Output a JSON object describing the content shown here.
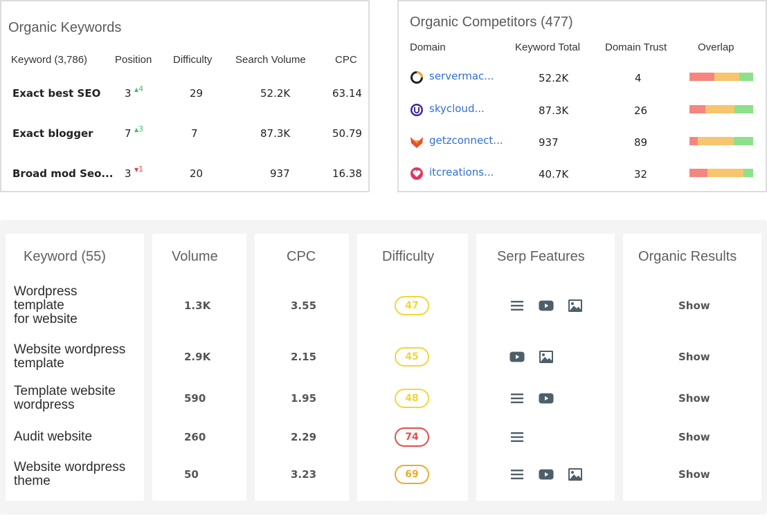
{
  "organic_keywords": {
    "title": "Organic Keywords",
    "headers": {
      "keyword": "Keyword (3,786)",
      "position": "Position",
      "difficulty": "Difficulty",
      "search_volume": "Search Volume",
      "cpc": "CPC"
    },
    "rows": [
      {
        "keyword": "Exact best SEO",
        "position": "3",
        "delta": "4",
        "trend": "up",
        "difficulty": "29",
        "volume": "52.2K",
        "cpc": "63.14"
      },
      {
        "keyword": "Exact blogger",
        "position": "7",
        "delta": "3",
        "trend": "up",
        "difficulty": "7",
        "volume": "87.3K",
        "cpc": "50.79"
      },
      {
        "keyword": "Broad mod Seo...",
        "position": "3",
        "delta": "1",
        "trend": "down",
        "difficulty": "20",
        "volume": "937",
        "cpc": "16.38"
      }
    ]
  },
  "organic_competitors": {
    "title": "Organic Competitors (477)",
    "headers": {
      "domain": "Domain",
      "keyword_total": "Keyword Total",
      "domain_trust": "Domain Trust",
      "overlap": "Overlap"
    },
    "rows": [
      {
        "domain": "servermac...",
        "icon": "ring-logo-icon",
        "keyword_total": "52.2K",
        "domain_trust": "4",
        "overlap": [
          0.39,
          0.39,
          0.22
        ]
      },
      {
        "domain": "skycloud...",
        "icon": "u-circle-logo-icon",
        "keyword_total": "87.3K",
        "domain_trust": "26",
        "overlap": [
          0.25,
          0.46,
          0.29
        ]
      },
      {
        "domain": "getzconnect...",
        "icon": "fox-logo-icon",
        "keyword_total": "937",
        "domain_trust": "89",
        "overlap": [
          0.13,
          0.57,
          0.3
        ]
      },
      {
        "domain": "itcreations...",
        "icon": "heart-logo-icon",
        "keyword_total": "40.7K",
        "domain_trust": "32",
        "overlap": [
          0.28,
          0.57,
          0.15
        ]
      }
    ]
  },
  "keyword_table": {
    "headers": {
      "keyword": "Keyword (55)",
      "volume": "Volume",
      "cpc": "CPC",
      "difficulty": "Difficulty",
      "serp": "Serp Features",
      "organic": "Organic Results"
    },
    "rows": [
      {
        "keyword": [
          "Wordpress",
          "template",
          "for website"
        ],
        "volume": "1.3K",
        "cpc": "3.55",
        "difficulty": "47",
        "difficulty_color": "#f2d63a",
        "serp": [
          "list-icon",
          "video-icon",
          "image-icon"
        ],
        "organic": "Show"
      },
      {
        "keyword": [
          "Website wordpress",
          "template"
        ],
        "volume": "2.9K",
        "cpc": "2.15",
        "difficulty": "45",
        "difficulty_color": "#f2d63a",
        "serp": [
          "video-icon",
          "image-icon"
        ],
        "organic": "Show"
      },
      {
        "keyword": [
          "Template website",
          "wordpress"
        ],
        "volume": "590",
        "cpc": "1.95",
        "difficulty": "48",
        "difficulty_color": "#f2d63a",
        "serp": [
          "list-icon",
          "video-icon"
        ],
        "organic": "Show"
      },
      {
        "keyword": [
          "Audit website"
        ],
        "volume": "260",
        "cpc": "2.29",
        "difficulty": "74",
        "difficulty_color": "#e94a4a",
        "serp": [
          "list-icon"
        ],
        "organic": "Show"
      },
      {
        "keyword": [
          "Website wordpress",
          "theme"
        ],
        "volume": "50",
        "cpc": "3.23",
        "difficulty": "69",
        "difficulty_color": "#eeaa2a",
        "serp": [
          "list-icon",
          "video-icon",
          "image-icon"
        ],
        "organic": "Show"
      }
    ]
  }
}
